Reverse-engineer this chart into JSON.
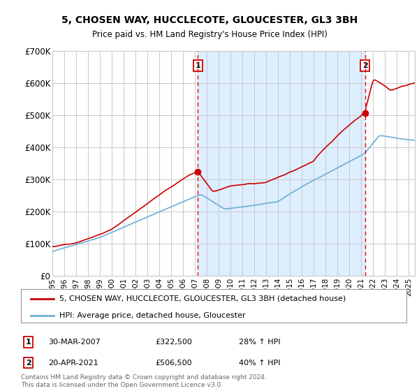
{
  "title": "5, CHOSEN WAY, HUCCLECOTE, GLOUCESTER, GL3 3BH",
  "subtitle": "Price paid vs. HM Land Registry's House Price Index (HPI)",
  "ylim": [
    0,
    700000
  ],
  "yticks": [
    0,
    100000,
    200000,
    300000,
    400000,
    500000,
    600000,
    700000
  ],
  "ytick_labels": [
    "£0",
    "£100K",
    "£200K",
    "£300K",
    "£400K",
    "£500K",
    "£600K",
    "£700K"
  ],
  "sale1_date": 2007.24,
  "sale1_price": 322500,
  "sale2_date": 2021.3,
  "sale2_price": 506500,
  "hpi_color": "#6baed6",
  "sale_color": "#cc0000",
  "vline_color": "#ee0000",
  "grid_color": "#c8c8c8",
  "shade_color": "#ddeeff",
  "background_color": "#ffffff",
  "legend1": "5, CHOSEN WAY, HUCCLECOTE, GLOUCESTER, GL3 3BH (detached house)",
  "legend2": "HPI: Average price, detached house, Gloucester",
  "footer": "Contains HM Land Registry data © Crown copyright and database right 2024.\nThis data is licensed under the Open Government Licence v3.0.",
  "xmin": 1995,
  "xmax": 2025.5
}
